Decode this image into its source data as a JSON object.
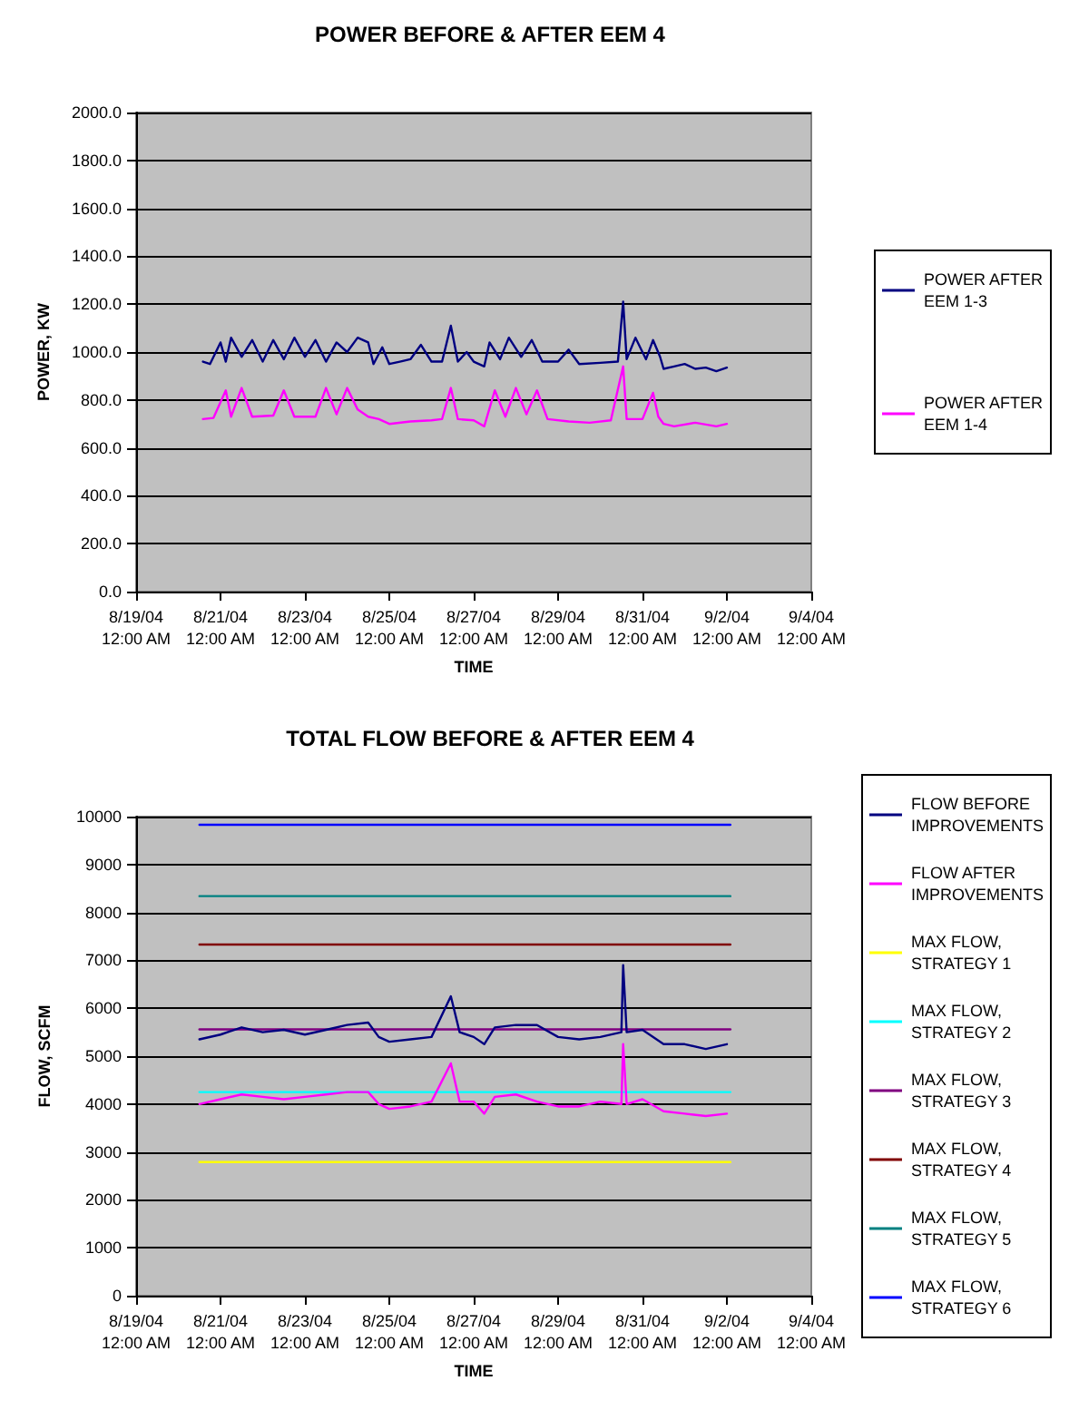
{
  "chart_data": [
    {
      "type": "line",
      "title": "POWER BEFORE & AFTER EEM 4",
      "xlabel": "TIME",
      "ylabel": "POWER, KW",
      "xlim": [
        "--08-19",
        "--09-04"
      ],
      "xticks": [
        {
          "value": "--08-19",
          "label": "8/19/04\n12:00 AM"
        },
        {
          "value": "--08-21",
          "label": "8/21/04\n12:00 AM"
        },
        {
          "value": "--08-23",
          "label": "8/23/04\n12:00 AM"
        },
        {
          "value": "--08-25",
          "label": "8/25/04\n12:00 AM"
        },
        {
          "value": "--08-27",
          "label": "8/27/04\n12:00 AM"
        },
        {
          "value": "--08-29",
          "label": "8/29/04\n12:00 AM"
        },
        {
          "value": "--08-31",
          "label": "8/31/04\n12:00 AM"
        },
        {
          "value": "--09-02",
          "label": "9/2/04\n12:00 AM"
        },
        {
          "value": "--09-04",
          "label": "9/4/04\n12:00 AM"
        }
      ],
      "ylim": [
        0,
        2000
      ],
      "yticks": [
        {
          "value": 0,
          "label": "0.0"
        },
        {
          "value": 200,
          "label": "200.0"
        },
        {
          "value": 400,
          "label": "400.0"
        },
        {
          "value": 600,
          "label": "600.0"
        },
        {
          "value": 800,
          "label": "800.0"
        },
        {
          "value": 1000,
          "label": "1000.0"
        },
        {
          "value": 1200,
          "label": "1200.0"
        },
        {
          "value": 1400,
          "label": "1400.0"
        },
        {
          "value": 1600,
          "label": "1600.0"
        },
        {
          "value": 1800,
          "label": "1800.0"
        },
        {
          "value": 2000,
          "label": "2000.0"
        }
      ],
      "grid": "y",
      "legend": "right",
      "marker": "none",
      "line_style": "solid",
      "series": [
        {
          "name": "POWER AFTER EEM 1-3",
          "color": "#000080",
          "x": [
            "--08-20T14:00",
            "--08-20T18:00",
            "--08-21T00:00",
            "--08-21T03:00",
            "--08-21T06:00",
            "--08-21T12:00",
            "--08-21T18:00",
            "--08-22T00:00",
            "--08-22T06:00",
            "--08-22T12:00",
            "--08-22T18:00",
            "--08-23T00:00",
            "--08-23T06:00",
            "--08-23T12:00",
            "--08-23T18:00",
            "--08-24T00:00",
            "--08-24T06:00",
            "--08-24T12:00",
            "--08-24T15:00",
            "--08-24T20:00",
            "--08-25T00:00",
            "--08-25T06:00",
            "--08-25T12:00",
            "--08-25T18:00",
            "--08-26T00:00",
            "--08-26T06:00",
            "--08-26T11:00",
            "--08-26T15:00",
            "--08-26T20:00",
            "--08-27T00:00",
            "--08-27T06:00",
            "--08-27T09:00",
            "--08-27T15:00",
            "--08-27T20:00",
            "--08-28T03:00",
            "--08-28T09:00",
            "--08-28T15:00",
            "--08-29T00:00",
            "--08-29T06:00",
            "--08-29T12:00",
            "--08-30T00:00",
            "--08-30T10:00",
            "--08-30T13:00",
            "--08-30T15:00",
            "--08-30T20:00",
            "--08-31T02:00",
            "--08-31T06:00",
            "--08-31T10:00",
            "--08-31T12:00",
            "--08-31T18:00",
            "--09-01T00:00",
            "--09-01T06:00",
            "--09-01T12:00",
            "--09-01T18:00",
            "--09-02T00:00"
          ],
          "values": [
            960,
            950,
            1040,
            960,
            1060,
            980,
            1050,
            960,
            1050,
            970,
            1060,
            980,
            1050,
            960,
            1040,
            1000,
            1060,
            1040,
            950,
            1020,
            950,
            960,
            970,
            1030,
            960,
            960,
            1110,
            960,
            1000,
            960,
            940,
            1040,
            970,
            1060,
            980,
            1050,
            960,
            960,
            1010,
            950,
            955,
            960,
            1210,
            970,
            1060,
            970,
            1050,
            980,
            930,
            940,
            950,
            930,
            935,
            920,
            935
          ]
        },
        {
          "name": "POWER AFTER EEM 1-4",
          "color": "#ff00ff",
          "x": [
            "--08-20T14:00",
            "--08-20T20:00",
            "--08-21T03:00",
            "--08-21T06:00",
            "--08-21T12:00",
            "--08-21T18:00",
            "--08-22T06:00",
            "--08-22T12:00",
            "--08-22T18:00",
            "--08-23T06:00",
            "--08-23T12:00",
            "--08-23T18:00",
            "--08-24T00:00",
            "--08-24T06:00",
            "--08-24T12:00",
            "--08-24T18:00",
            "--08-25T00:00",
            "--08-25T12:00",
            "--08-26T00:00",
            "--08-26T06:00",
            "--08-26T11:00",
            "--08-26T15:00",
            "--08-27T00:00",
            "--08-27T06:00",
            "--08-27T12:00",
            "--08-27T18:00",
            "--08-28T00:00",
            "--08-28T06:00",
            "--08-28T12:00",
            "--08-28T18:00",
            "--08-29T06:00",
            "--08-29T18:00",
            "--08-30T06:00",
            "--08-30T13:00",
            "--08-30T15:00",
            "--08-31T00:00",
            "--08-31T06:00",
            "--08-31T09:00",
            "--08-31T12:00",
            "--08-31T18:00",
            "--09-01T06:00",
            "--09-01T18:00",
            "--09-02T00:00"
          ],
          "values": [
            720,
            725,
            840,
            730,
            850,
            730,
            735,
            840,
            730,
            730,
            850,
            740,
            850,
            760,
            730,
            720,
            700,
            710,
            715,
            720,
            850,
            720,
            715,
            690,
            840,
            730,
            850,
            740,
            840,
            720,
            710,
            705,
            715,
            940,
            720,
            720,
            830,
            730,
            700,
            690,
            705,
            690,
            700
          ]
        }
      ]
    },
    {
      "type": "line",
      "title": "TOTAL FLOW BEFORE & AFTER EEM 4",
      "xlabel": "TIME",
      "ylabel": "FLOW, SCFM",
      "xlim": [
        "--08-19",
        "--09-04"
      ],
      "xticks": [
        {
          "value": "--08-19",
          "label": "8/19/04\n12:00 AM"
        },
        {
          "value": "--08-21",
          "label": "8/21/04\n12:00 AM"
        },
        {
          "value": "--08-23",
          "label": "8/23/04\n12:00 AM"
        },
        {
          "value": "--08-25",
          "label": "8/25/04\n12:00 AM"
        },
        {
          "value": "--08-27",
          "label": "8/27/04\n12:00 AM"
        },
        {
          "value": "--08-29",
          "label": "8/29/04\n12:00 AM"
        },
        {
          "value": "--08-31",
          "label": "8/31/04\n12:00 AM"
        },
        {
          "value": "--09-02",
          "label": "9/2/04\n12:00 AM"
        },
        {
          "value": "--09-04",
          "label": "9/4/04\n12:00 AM"
        }
      ],
      "ylim": [
        0,
        10000
      ],
      "yticks": [
        0,
        1000,
        2000,
        3000,
        4000,
        5000,
        6000,
        7000,
        8000,
        9000,
        10000
      ],
      "grid": "y",
      "legend": "right",
      "marker": "none",
      "line_style": "solid",
      "series": [
        {
          "name": "FLOW BEFORE IMPROVEMENTS",
          "color": "#000080",
          "x": [
            "--08-20T12:00",
            "--08-21T00:00",
            "--08-21T12:00",
            "--08-22T00:00",
            "--08-22T12:00",
            "--08-23T00:00",
            "--08-23T12:00",
            "--08-24T00:00",
            "--08-24T12:00",
            "--08-24T18:00",
            "--08-25T00:00",
            "--08-25T12:00",
            "--08-26T00:00",
            "--08-26T11:00",
            "--08-26T16:00",
            "--08-27T00:00",
            "--08-27T06:00",
            "--08-27T12:00",
            "--08-28T00:00",
            "--08-28T12:00",
            "--08-29T00:00",
            "--08-29T12:00",
            "--08-30T00:00",
            "--08-30T12:00",
            "--08-30T13:00",
            "--08-30T15:00",
            "--08-31T00:00",
            "--08-31T12:00",
            "--09-01T00:00",
            "--09-01T12:00",
            "--09-02T00:00"
          ],
          "values": [
            5350,
            5450,
            5600,
            5500,
            5550,
            5450,
            5550,
            5650,
            5700,
            5400,
            5300,
            5350,
            5400,
            6250,
            5500,
            5400,
            5250,
            5600,
            5650,
            5650,
            5400,
            5350,
            5400,
            5500,
            6900,
            5500,
            5550,
            5250,
            5250,
            5150,
            5250
          ]
        },
        {
          "name": "FLOW AFTER IMPROVEMENTS",
          "color": "#ff00ff",
          "x": [
            "--08-20T12:00",
            "--08-21T00:00",
            "--08-21T12:00",
            "--08-22T00:00",
            "--08-22T12:00",
            "--08-23T00:00",
            "--08-23T12:00",
            "--08-24T00:00",
            "--08-24T12:00",
            "--08-24T18:00",
            "--08-25T00:00",
            "--08-25T12:00",
            "--08-26T00:00",
            "--08-26T11:00",
            "--08-26T16:00",
            "--08-27T00:00",
            "--08-27T06:00",
            "--08-27T12:00",
            "--08-28T00:00",
            "--08-28T12:00",
            "--08-29T00:00",
            "--08-29T12:00",
            "--08-30T00:00",
            "--08-30T12:00",
            "--08-30T13:00",
            "--08-30T15:00",
            "--08-31T00:00",
            "--08-31T12:00",
            "--09-01T00:00",
            "--09-01T12:00",
            "--09-02T00:00"
          ],
          "values": [
            4000,
            4100,
            4200,
            4150,
            4100,
            4150,
            4200,
            4250,
            4250,
            4000,
            3900,
            3950,
            4050,
            4850,
            4050,
            4050,
            3800,
            4150,
            4200,
            4050,
            3950,
            3950,
            4050,
            4000,
            5250,
            4000,
            4100,
            3850,
            3800,
            3750,
            3800
          ]
        },
        {
          "name": "MAX FLOW, STRATEGY 1",
          "color": "#ffff00",
          "x": [
            "--08-20T12:00",
            "--09-02T02:00"
          ],
          "values": [
            2790,
            2790
          ]
        },
        {
          "name": "MAX FLOW, STRATEGY 2",
          "color": "#00ffff",
          "x": [
            "--08-20T12:00",
            "--09-02T02:00"
          ],
          "values": [
            4250,
            4250
          ]
        },
        {
          "name": "MAX FLOW, STRATEGY 3",
          "color": "#800080",
          "x": [
            "--08-20T12:00",
            "--09-02T02:00"
          ],
          "values": [
            5560,
            5560
          ]
        },
        {
          "name": "MAX FLOW, STRATEGY 4",
          "color": "#800000",
          "x": [
            "--08-20T12:00",
            "--09-02T02:00"
          ],
          "values": [
            7330,
            7330
          ]
        },
        {
          "name": "MAX FLOW, STRATEGY 5",
          "color": "#008080",
          "x": [
            "--08-20T12:00",
            "--09-02T02:00"
          ],
          "values": [
            8340,
            8340
          ]
        },
        {
          "name": "MAX FLOW, STRATEGY 6",
          "color": "#0000ff",
          "x": [
            "--08-20T12:00",
            "--09-02T02:00"
          ],
          "values": [
            9830,
            9830
          ]
        }
      ]
    }
  ]
}
